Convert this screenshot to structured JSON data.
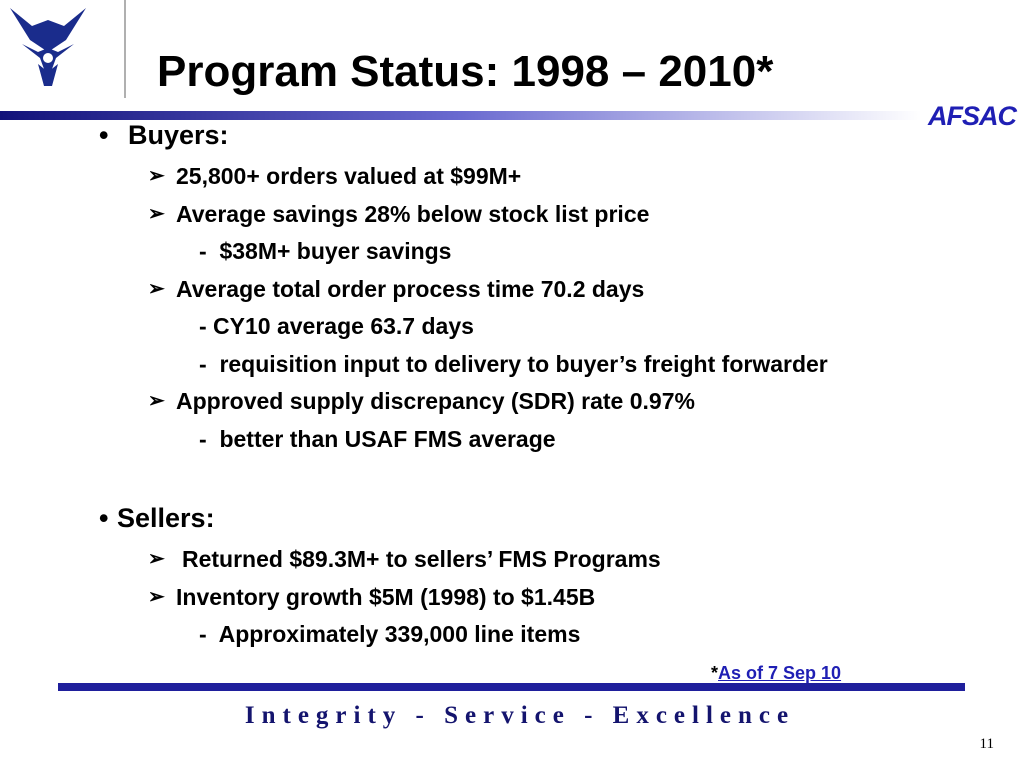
{
  "header": {
    "title": "Program Status: 1998 – 2010*",
    "brand": "AFSAC"
  },
  "sections": [
    {
      "heading": "Buyers:",
      "items": [
        {
          "text": "25,800+ orders valued at $99M+",
          "notes": []
        },
        {
          "text": "Average savings 28% below stock list price",
          "notes": [
            "-  $38M+ buyer savings"
          ]
        },
        {
          "text": "Average total order process time 70.2 days",
          "notes": [
            "- CY10 average 63.7 days",
            "-  requisition input to delivery to buyer’s freight forwarder"
          ]
        },
        {
          "text": "Approved supply discrepancy (SDR) rate 0.97%",
          "notes": [
            "-  better than USAF FMS average"
          ]
        }
      ]
    },
    {
      "heading": "Sellers:",
      "items": [
        {
          "text": "Returned $89.3M+ to sellers’ FMS Programs",
          "notes": []
        },
        {
          "text": "Inventory growth $5M (1998) to $1.45B",
          "notes": [
            "-  Approximately 339,000 line items"
          ]
        }
      ]
    }
  ],
  "footnote": {
    "marker": "*",
    "text": "As of 7 Sep 10"
  },
  "footer": {
    "motto": "Integrity - Service - Excellence",
    "page_number": "11"
  }
}
